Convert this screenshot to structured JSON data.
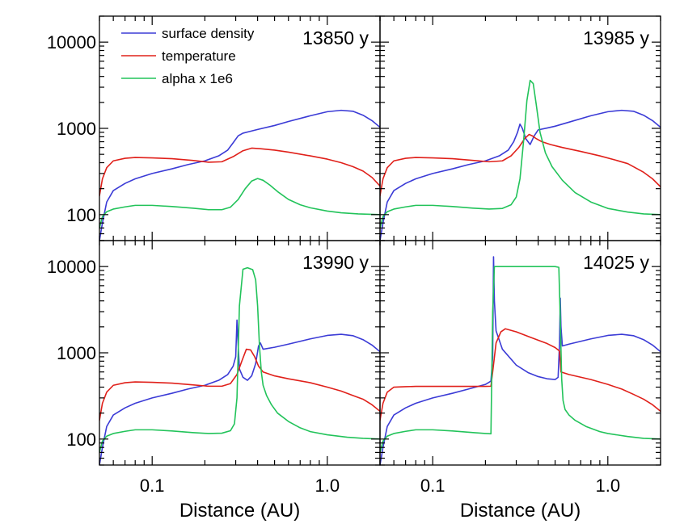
{
  "chart_data": {
    "type": "line",
    "x_scale": "log",
    "y_scale": "log",
    "xlim": [
      0.05,
      2.0
    ],
    "ylim": [
      50,
      20000
    ],
    "xlabel": "Distance (AU)",
    "x_ticks": [
      {
        "value": 0.1,
        "label": "0.1"
      },
      {
        "value": 1.0,
        "label": "1.0"
      }
    ],
    "y_ticks": [
      {
        "value": 100,
        "label": "100"
      },
      {
        "value": 1000,
        "label": "1000"
      },
      {
        "value": 10000,
        "label": "10000"
      }
    ],
    "legend": {
      "placement": "top-left of first panel",
      "entries": [
        {
          "name": "surface density",
          "color": "#3b3bd6"
        },
        {
          "name": "temperature",
          "color": "#e0201a"
        },
        {
          "name": "alpha x 1e6",
          "color": "#22c35a"
        }
      ]
    },
    "colors": {
      "surface density": "#3b3bd6",
      "temperature": "#e0201a",
      "alpha x 1e6": "#22c35a"
    },
    "panels": [
      {
        "label": "13850 y",
        "series": [
          {
            "name": "surface density",
            "x": [
              0.05,
              0.052,
              0.055,
              0.06,
              0.07,
              0.08,
              0.1,
              0.13,
              0.16,
              0.2,
              0.24,
              0.27,
              0.29,
              0.31,
              0.33,
              0.36,
              0.4,
              0.5,
              0.6,
              0.8,
              1.0,
              1.2,
              1.4,
              1.6,
              1.8,
              2.0
            ],
            "y": [
              50,
              80,
              140,
              190,
              230,
              260,
              300,
              340,
              380,
              420,
              480,
              560,
              680,
              820,
              880,
              920,
              970,
              1080,
              1200,
              1400,
              1560,
              1620,
              1580,
              1420,
              1230,
              1030
            ]
          },
          {
            "name": "temperature",
            "x": [
              0.05,
              0.052,
              0.055,
              0.06,
              0.07,
              0.08,
              0.1,
              0.13,
              0.17,
              0.21,
              0.25,
              0.29,
              0.33,
              0.37,
              0.42,
              0.5,
              0.6,
              0.8,
              1.0,
              1.2,
              1.4,
              1.6,
              1.8,
              2.0
            ],
            "y": [
              165,
              260,
              350,
              420,
              450,
              460,
              455,
              445,
              425,
              405,
              410,
              470,
              550,
              590,
              580,
              560,
              530,
              480,
              440,
              400,
              360,
              320,
              270,
              215
            ]
          },
          {
            "name": "alpha x 1e6",
            "x": [
              0.05,
              0.052,
              0.055,
              0.06,
              0.07,
              0.08,
              0.1,
              0.13,
              0.17,
              0.21,
              0.25,
              0.28,
              0.31,
              0.34,
              0.37,
              0.4,
              0.43,
              0.47,
              0.52,
              0.6,
              0.7,
              0.8,
              1.0,
              1.2,
              1.5,
              2.0
            ],
            "y": [
              70,
              95,
              108,
              116,
              123,
              128,
              128,
              124,
              119,
              114,
              114,
              122,
              150,
              200,
              245,
              262,
              250,
              220,
              185,
              150,
              130,
              120,
              110,
              105,
              102,
              100
            ]
          }
        ]
      },
      {
        "label": "13985 y",
        "series": [
          {
            "name": "surface density",
            "x": [
              0.05,
              0.052,
              0.055,
              0.06,
              0.07,
              0.08,
              0.1,
              0.13,
              0.16,
              0.2,
              0.24,
              0.27,
              0.29,
              0.305,
              0.315,
              0.325,
              0.34,
              0.36,
              0.38,
              0.4,
              0.45,
              0.5,
              0.6,
              0.8,
              1.0,
              1.2,
              1.4,
              1.6,
              1.8,
              2.0
            ],
            "y": [
              50,
              80,
              140,
              190,
              230,
              260,
              300,
              340,
              380,
              420,
              480,
              560,
              700,
              900,
              1120,
              1000,
              760,
              650,
              820,
              960,
              1010,
              1060,
              1180,
              1400,
              1560,
              1620,
              1580,
              1420,
              1230,
              1030
            ]
          },
          {
            "name": "temperature",
            "x": [
              0.05,
              0.052,
              0.055,
              0.06,
              0.07,
              0.08,
              0.1,
              0.13,
              0.17,
              0.21,
              0.25,
              0.28,
              0.31,
              0.335,
              0.355,
              0.37,
              0.39,
              0.42,
              0.47,
              0.55,
              0.7,
              0.9,
              1.1,
              1.3,
              1.6,
              1.8,
              2.0
            ],
            "y": [
              165,
              260,
              350,
              420,
              450,
              460,
              455,
              445,
              425,
              410,
              420,
              480,
              600,
              760,
              850,
              820,
              760,
              700,
              650,
              600,
              540,
              480,
              430,
              390,
              310,
              260,
              210
            ]
          },
          {
            "name": "alpha x 1e6",
            "x": [
              0.05,
              0.052,
              0.055,
              0.06,
              0.07,
              0.08,
              0.1,
              0.13,
              0.17,
              0.21,
              0.25,
              0.28,
              0.3,
              0.315,
              0.33,
              0.345,
              0.36,
              0.375,
              0.39,
              0.41,
              0.44,
              0.48,
              0.55,
              0.65,
              0.8,
              1.0,
              1.3,
              1.6,
              2.0
            ],
            "y": [
              70,
              95,
              108,
              116,
              123,
              128,
              128,
              124,
              119,
              116,
              118,
              130,
              160,
              260,
              700,
              2100,
              3600,
              3300,
              1900,
              900,
              520,
              360,
              250,
              180,
              140,
              118,
              107,
              102,
              100
            ]
          }
        ]
      },
      {
        "label": "13990 y",
        "series": [
          {
            "name": "surface density",
            "x": [
              0.05,
              0.052,
              0.055,
              0.06,
              0.07,
              0.08,
              0.1,
              0.13,
              0.16,
              0.2,
              0.24,
              0.27,
              0.29,
              0.3,
              0.305,
              0.31,
              0.315,
              0.33,
              0.35,
              0.37,
              0.39,
              0.405,
              0.415,
              0.43,
              0.5,
              0.6,
              0.8,
              1.0,
              1.2,
              1.4,
              1.6,
              1.8,
              2.0
            ],
            "y": [
              50,
              80,
              140,
              190,
              230,
              260,
              300,
              340,
              380,
              420,
              480,
              560,
              700,
              900,
              2400,
              1200,
              650,
              520,
              480,
              540,
              750,
              1200,
              1300,
              1100,
              1160,
              1260,
              1450,
              1590,
              1640,
              1580,
              1420,
              1230,
              1030
            ]
          },
          {
            "name": "temperature",
            "x": [
              0.05,
              0.052,
              0.055,
              0.06,
              0.07,
              0.08,
              0.1,
              0.13,
              0.17,
              0.21,
              0.25,
              0.28,
              0.305,
              0.325,
              0.345,
              0.365,
              0.385,
              0.405,
              0.43,
              0.5,
              0.6,
              0.8,
              1.0,
              1.2,
              1.4,
              1.6,
              1.8,
              2.0
            ],
            "y": [
              165,
              260,
              350,
              420,
              450,
              460,
              455,
              445,
              425,
              410,
              410,
              440,
              560,
              800,
              1100,
              1080,
              900,
              700,
              600,
              540,
              500,
              450,
              400,
              360,
              320,
              290,
              250,
              210
            ]
          },
          {
            "name": "alpha x 1e6",
            "x": [
              0.05,
              0.052,
              0.055,
              0.06,
              0.07,
              0.08,
              0.1,
              0.13,
              0.17,
              0.21,
              0.25,
              0.28,
              0.295,
              0.305,
              0.315,
              0.33,
              0.35,
              0.375,
              0.39,
              0.4,
              0.41,
              0.42,
              0.43,
              0.45,
              0.48,
              0.52,
              0.6,
              0.7,
              0.8,
              1.0,
              1.3,
              1.6,
              2.0
            ],
            "y": [
              70,
              95,
              108,
              116,
              123,
              128,
              128,
              124,
              119,
              116,
              117,
              125,
              150,
              300,
              3500,
              9300,
              9700,
              9200,
              7000,
              3500,
              1200,
              600,
              420,
              320,
              250,
              200,
              160,
              135,
              122,
              112,
              105,
              102,
              100
            ]
          }
        ]
      },
      {
        "label": "14025 y",
        "series": [
          {
            "name": "surface density",
            "x": [
              0.05,
              0.052,
              0.055,
              0.06,
              0.07,
              0.08,
              0.1,
              0.13,
              0.16,
              0.2,
              0.215,
              0.22,
              0.2225,
              0.225,
              0.23,
              0.25,
              0.3,
              0.35,
              0.4,
              0.45,
              0.5,
              0.52,
              0.53,
              0.535,
              0.54,
              0.55,
              0.6,
              0.8,
              1.0,
              1.2,
              1.4,
              1.6,
              1.8,
              2.0
            ],
            "y": [
              50,
              80,
              140,
              190,
              230,
              260,
              300,
              340,
              380,
              430,
              470,
              900,
              13000,
              4000,
              1800,
              1100,
              720,
              590,
              530,
              500,
              490,
              520,
              1300,
              4300,
              2000,
              1200,
              1260,
              1450,
              1590,
              1640,
              1580,
              1420,
              1230,
              1030
            ]
          },
          {
            "name": "temperature",
            "x": [
              0.05,
              0.052,
              0.055,
              0.06,
              0.07,
              0.08,
              0.1,
              0.13,
              0.17,
              0.2,
              0.215,
              0.22,
              0.23,
              0.245,
              0.26,
              0.3,
              0.35,
              0.4,
              0.45,
              0.5,
              0.53,
              0.54,
              0.6,
              0.8,
              1.0,
              1.2,
              1.4,
              1.6,
              1.8,
              2.0
            ],
            "y": [
              165,
              260,
              350,
              400,
              405,
              408,
              408,
              408,
              408,
              408,
              410,
              600,
              1300,
              1750,
              1900,
              1750,
              1550,
              1400,
              1280,
              1150,
              1050,
              600,
              560,
              490,
              430,
              380,
              330,
              290,
              250,
              210
            ]
          },
          {
            "name": "alpha x 1e6",
            "x": [
              0.05,
              0.052,
              0.055,
              0.06,
              0.07,
              0.08,
              0.1,
              0.13,
              0.17,
              0.2,
              0.215,
              0.22,
              0.225,
              0.24,
              0.3,
              0.4,
              0.5,
              0.525,
              0.535,
              0.545,
              0.555,
              0.57,
              0.6,
              0.65,
              0.75,
              0.9,
              1.0,
              1.3,
              1.6,
              2.0
            ],
            "y": [
              70,
              95,
              108,
              116,
              123,
              128,
              128,
              124,
              119,
              116,
              115,
              3000,
              10000,
              10000,
              10000,
              10000,
              10000,
              9800,
              2500,
              500,
              280,
              220,
              190,
              165,
              140,
              122,
              116,
              107,
              102,
              100
            ]
          }
        ]
      }
    ]
  }
}
